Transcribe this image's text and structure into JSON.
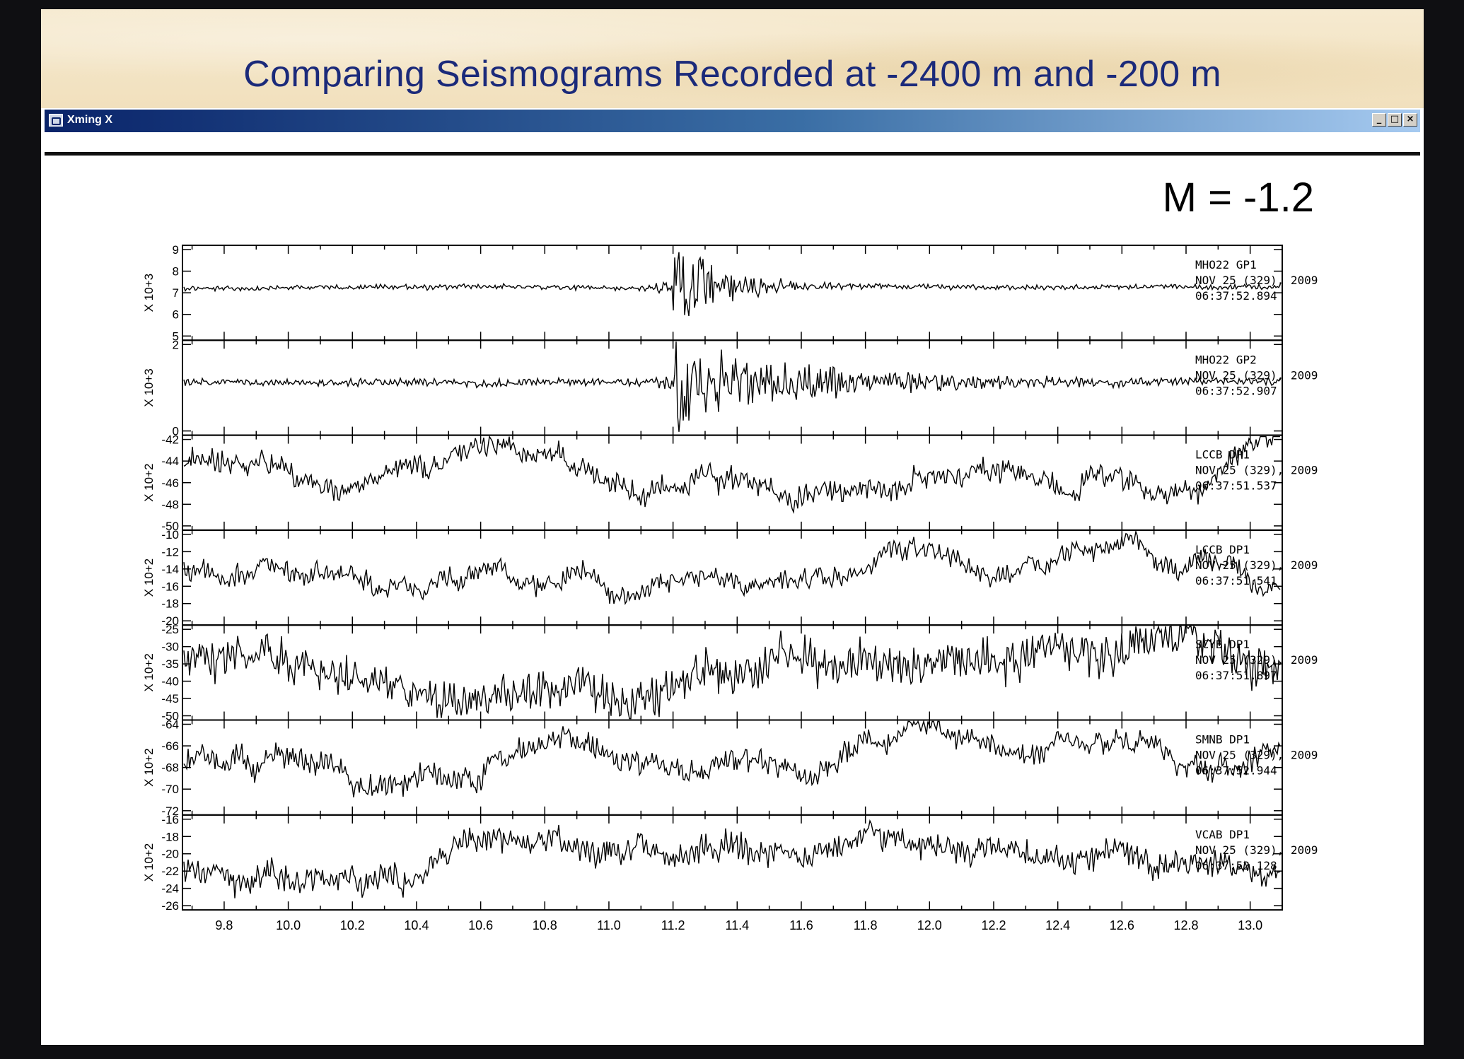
{
  "slide": {
    "title": "Comparing Seismograms Recorded at -2400 m and -200 m",
    "magnitude": "M = -1.2"
  },
  "window": {
    "title": "Xming X",
    "buttons": [
      "minimize",
      "maximize",
      "close"
    ]
  },
  "colors": {
    "title": "#1b2a7a",
    "titlebar_start": "#0a246a",
    "titlebar_end": "#a6caf0",
    "trace": "#000000"
  },
  "chart_data": {
    "type": "line",
    "x_ticks": [
      "9.8",
      "10.0",
      "10.2",
      "10.4",
      "10.6",
      "10.8",
      "11.0",
      "11.2",
      "11.4",
      "11.6",
      "11.8",
      "12.0",
      "12.2",
      "12.4",
      "12.6",
      "12.8",
      "13.0"
    ],
    "xlim": [
      9.67,
      13.1
    ],
    "panels": [
      {
        "ylabel": "X 10+3",
        "y_ticks": [
          "9",
          "8",
          "7",
          "6",
          "5"
        ],
        "station": "MHO22",
        "channel": "GP1",
        "date": "NOV 25 (329), 2009",
        "time": "06:37:52.894",
        "baseline_frac": 0.44,
        "noise": 0.04,
        "event_start": 11.08,
        "event_peak": 11.2,
        "event_amp": 0.5,
        "event_decay": 0.16
      },
      {
        "ylabel": "X 10+3",
        "y_ticks": [
          "2",
          "0"
        ],
        "station": "MHO22",
        "channel": "GP2",
        "date": "NOV 25 (329), 2009",
        "time": "06:37:52.907",
        "baseline_frac": 0.44,
        "noise": 0.06,
        "event_start": 11.08,
        "event_peak": 11.2,
        "event_amp": 0.45,
        "event_decay": 0.45
      },
      {
        "ylabel": "X 10+2",
        "y_ticks": [
          "-42",
          "-44",
          "-46",
          "-48",
          "-50"
        ],
        "station": "LCCB",
        "channel": "DP1",
        "date": "NOV 25 (329), 2009",
        "time": "06:37:51.537",
        "baseline_frac": 0.45,
        "noise": 0.16,
        "event_start": 0,
        "event_peak": 0,
        "event_amp": 0,
        "event_decay": 0
      },
      {
        "ylabel": "X 10+2",
        "y_ticks": [
          "-10",
          "-12",
          "-14",
          "-16",
          "-18",
          "-20"
        ],
        "station": "LCCB",
        "channel": "DP1",
        "date": "NOV 25 (329), 2009",
        "time": "06:37:51.541",
        "baseline_frac": 0.5,
        "noise": 0.14,
        "event_start": 0,
        "event_peak": 0,
        "event_amp": 0,
        "event_decay": 0
      },
      {
        "ylabel": "X 10+2",
        "y_ticks": [
          "-25",
          "-30",
          "-35",
          "-40",
          "-45",
          "-50"
        ],
        "station": "SCYB",
        "channel": "DP1",
        "date": "NOV 25 (329), 2009",
        "time": "06:37:51.897",
        "baseline_frac": 0.5,
        "noise": 0.32,
        "event_start": 0,
        "event_peak": 0,
        "event_amp": 0,
        "event_decay": 0
      },
      {
        "ylabel": "X 10+2",
        "y_ticks": [
          "-64",
          "-66",
          "-68",
          "-70",
          "-72"
        ],
        "station": "SMNB",
        "channel": "DP1",
        "date": "NOV 25 (329), 2009",
        "time": "06:37:52.944",
        "baseline_frac": 0.45,
        "noise": 0.17,
        "event_start": 0,
        "event_peak": 0,
        "event_amp": 0,
        "event_decay": 0
      },
      {
        "ylabel": "X 10+2",
        "y_ticks": [
          "-16",
          "-18",
          "-20",
          "-22",
          "-24",
          "-26"
        ],
        "station": "VCAB",
        "channel": "DP1",
        "date": "NOV 25 (329), 2009",
        "time": "06:37:52.128",
        "baseline_frac": 0.5,
        "noise": 0.2,
        "event_start": 0,
        "event_peak": 0,
        "event_amp": 0,
        "event_decay": 0
      }
    ]
  }
}
